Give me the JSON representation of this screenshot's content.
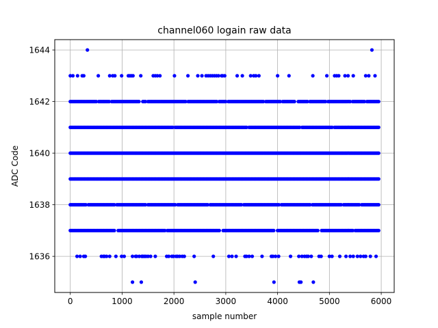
{
  "chart_data": {
    "type": "scatter",
    "title": "channel060 logain raw data",
    "xlabel": "sample number",
    "ylabel": "ADC Code",
    "xlim": [
      -300,
      6250
    ],
    "ylim": [
      1634.6,
      1644.4
    ],
    "xticks": [
      0,
      1000,
      2000,
      3000,
      4000,
      5000,
      6000
    ],
    "xtick_labels": [
      "0",
      "1000",
      "2000",
      "3000",
      "4000",
      "5000",
      "6000"
    ],
    "yticks": [
      1636,
      1638,
      1640,
      1642,
      1644
    ],
    "ytick_labels": [
      "1636",
      "1638",
      "1640",
      "1642",
      "1644"
    ],
    "grid": true,
    "marker_color": "#0000ff",
    "n_samples": 5950,
    "series": [
      {
        "levels": [
          {
            "y": 1635,
            "x": [
              1200,
              1370,
              2410,
              3930,
              4420,
              4450,
              4690
            ]
          },
          {
            "y": 1636,
            "x": [
              130,
              190,
              260,
              290,
              600,
              640,
              660,
              700,
              760,
              880,
              990,
              1040,
              1200,
              1260,
              1280,
              1330,
              1380,
              1400,
              1430,
              1460,
              1500,
              1550,
              1640,
              1860,
              1900,
              1960,
              1990,
              2040,
              2070,
              2110,
              2160,
              2200,
              2390,
              2760,
              3060,
              3120,
              3200,
              3370,
              3400,
              3450,
              3510,
              3700,
              3880,
              3910,
              3960,
              4020,
              4250,
              4410,
              4470,
              4520,
              4560,
              4590,
              4650,
              4800,
              4840,
              5000,
              5050,
              5200,
              5320,
              5400,
              5460,
              5540,
              5600,
              5660,
              5700,
              5790,
              5900
            ]
          },
          {
            "y": 1637,
            "x_range": [
              0,
              5950
            ],
            "gaps": [
              [
                870,
                900
              ],
              [
                1840,
                1870
              ],
              [
                2900,
                2930
              ],
              [
                3950,
                3980
              ],
              [
                4800,
                4830
              ],
              [
                5460,
                5480
              ]
            ]
          },
          {
            "y": 1638,
            "x_range": [
              0,
              5950
            ],
            "gaps": [
              [
                310,
                330
              ],
              [
                870,
                895
              ],
              [
                1470,
                1495
              ],
              [
                2040,
                2060
              ],
              [
                2660,
                2680
              ],
              [
                3310,
                3330
              ],
              [
                4050,
                4070
              ],
              [
                4630,
                4650
              ],
              [
                5250,
                5270
              ],
              [
                5580,
                5600
              ]
            ]
          },
          {
            "y": 1639,
            "x_range": [
              0,
              5950
            ],
            "gaps": []
          },
          {
            "y": 1640,
            "x_range": [
              0,
              5950
            ],
            "gaps": []
          },
          {
            "y": 1641,
            "x_range": [
              0,
              5950
            ],
            "gaps": [
              [
                1990,
                2010
              ],
              [
                3410,
                3430
              ],
              [
                4440,
                4460
              ],
              [
                5070,
                5090
              ]
            ]
          },
          {
            "y": 1642,
            "x_range": [
              0,
              5950
            ],
            "gaps": [
              [
                520,
                545
              ],
              [
                760,
                785
              ],
              [
                1350,
                1380
              ],
              [
                1460,
                1490
              ],
              [
                2230,
                2250
              ],
              [
                2830,
                2850
              ],
              [
                3020,
                3040
              ],
              [
                3730,
                3750
              ],
              [
                4060,
                4080
              ],
              [
                4350,
                4385
              ],
              [
                4580,
                4600
              ],
              [
                4930,
                4950
              ],
              [
                5420,
                5440
              ],
              [
                5680,
                5700
              ]
            ]
          },
          {
            "y": 1643,
            "x": [
              0,
              50,
              140,
              230,
              260,
              540,
              760,
              820,
              860,
              990,
              1120,
              1150,
              1180,
              1210,
              1360,
              1600,
              1640,
              1680,
              1730,
              2010,
              2270,
              2460,
              2540,
              2620,
              2660,
              2700,
              2740,
              2780,
              2820,
              2860,
              2920,
              2940,
              2980,
              3220,
              3320,
              3480,
              3540,
              3580,
              3640,
              4000,
              4220,
              4680,
              4950,
              5100,
              5140,
              5180,
              5300,
              5360,
              5460,
              5700,
              5760,
              5880
            ]
          },
          {
            "y": 1644,
            "x": [
              330,
              5820
            ]
          }
        ]
      }
    ]
  }
}
